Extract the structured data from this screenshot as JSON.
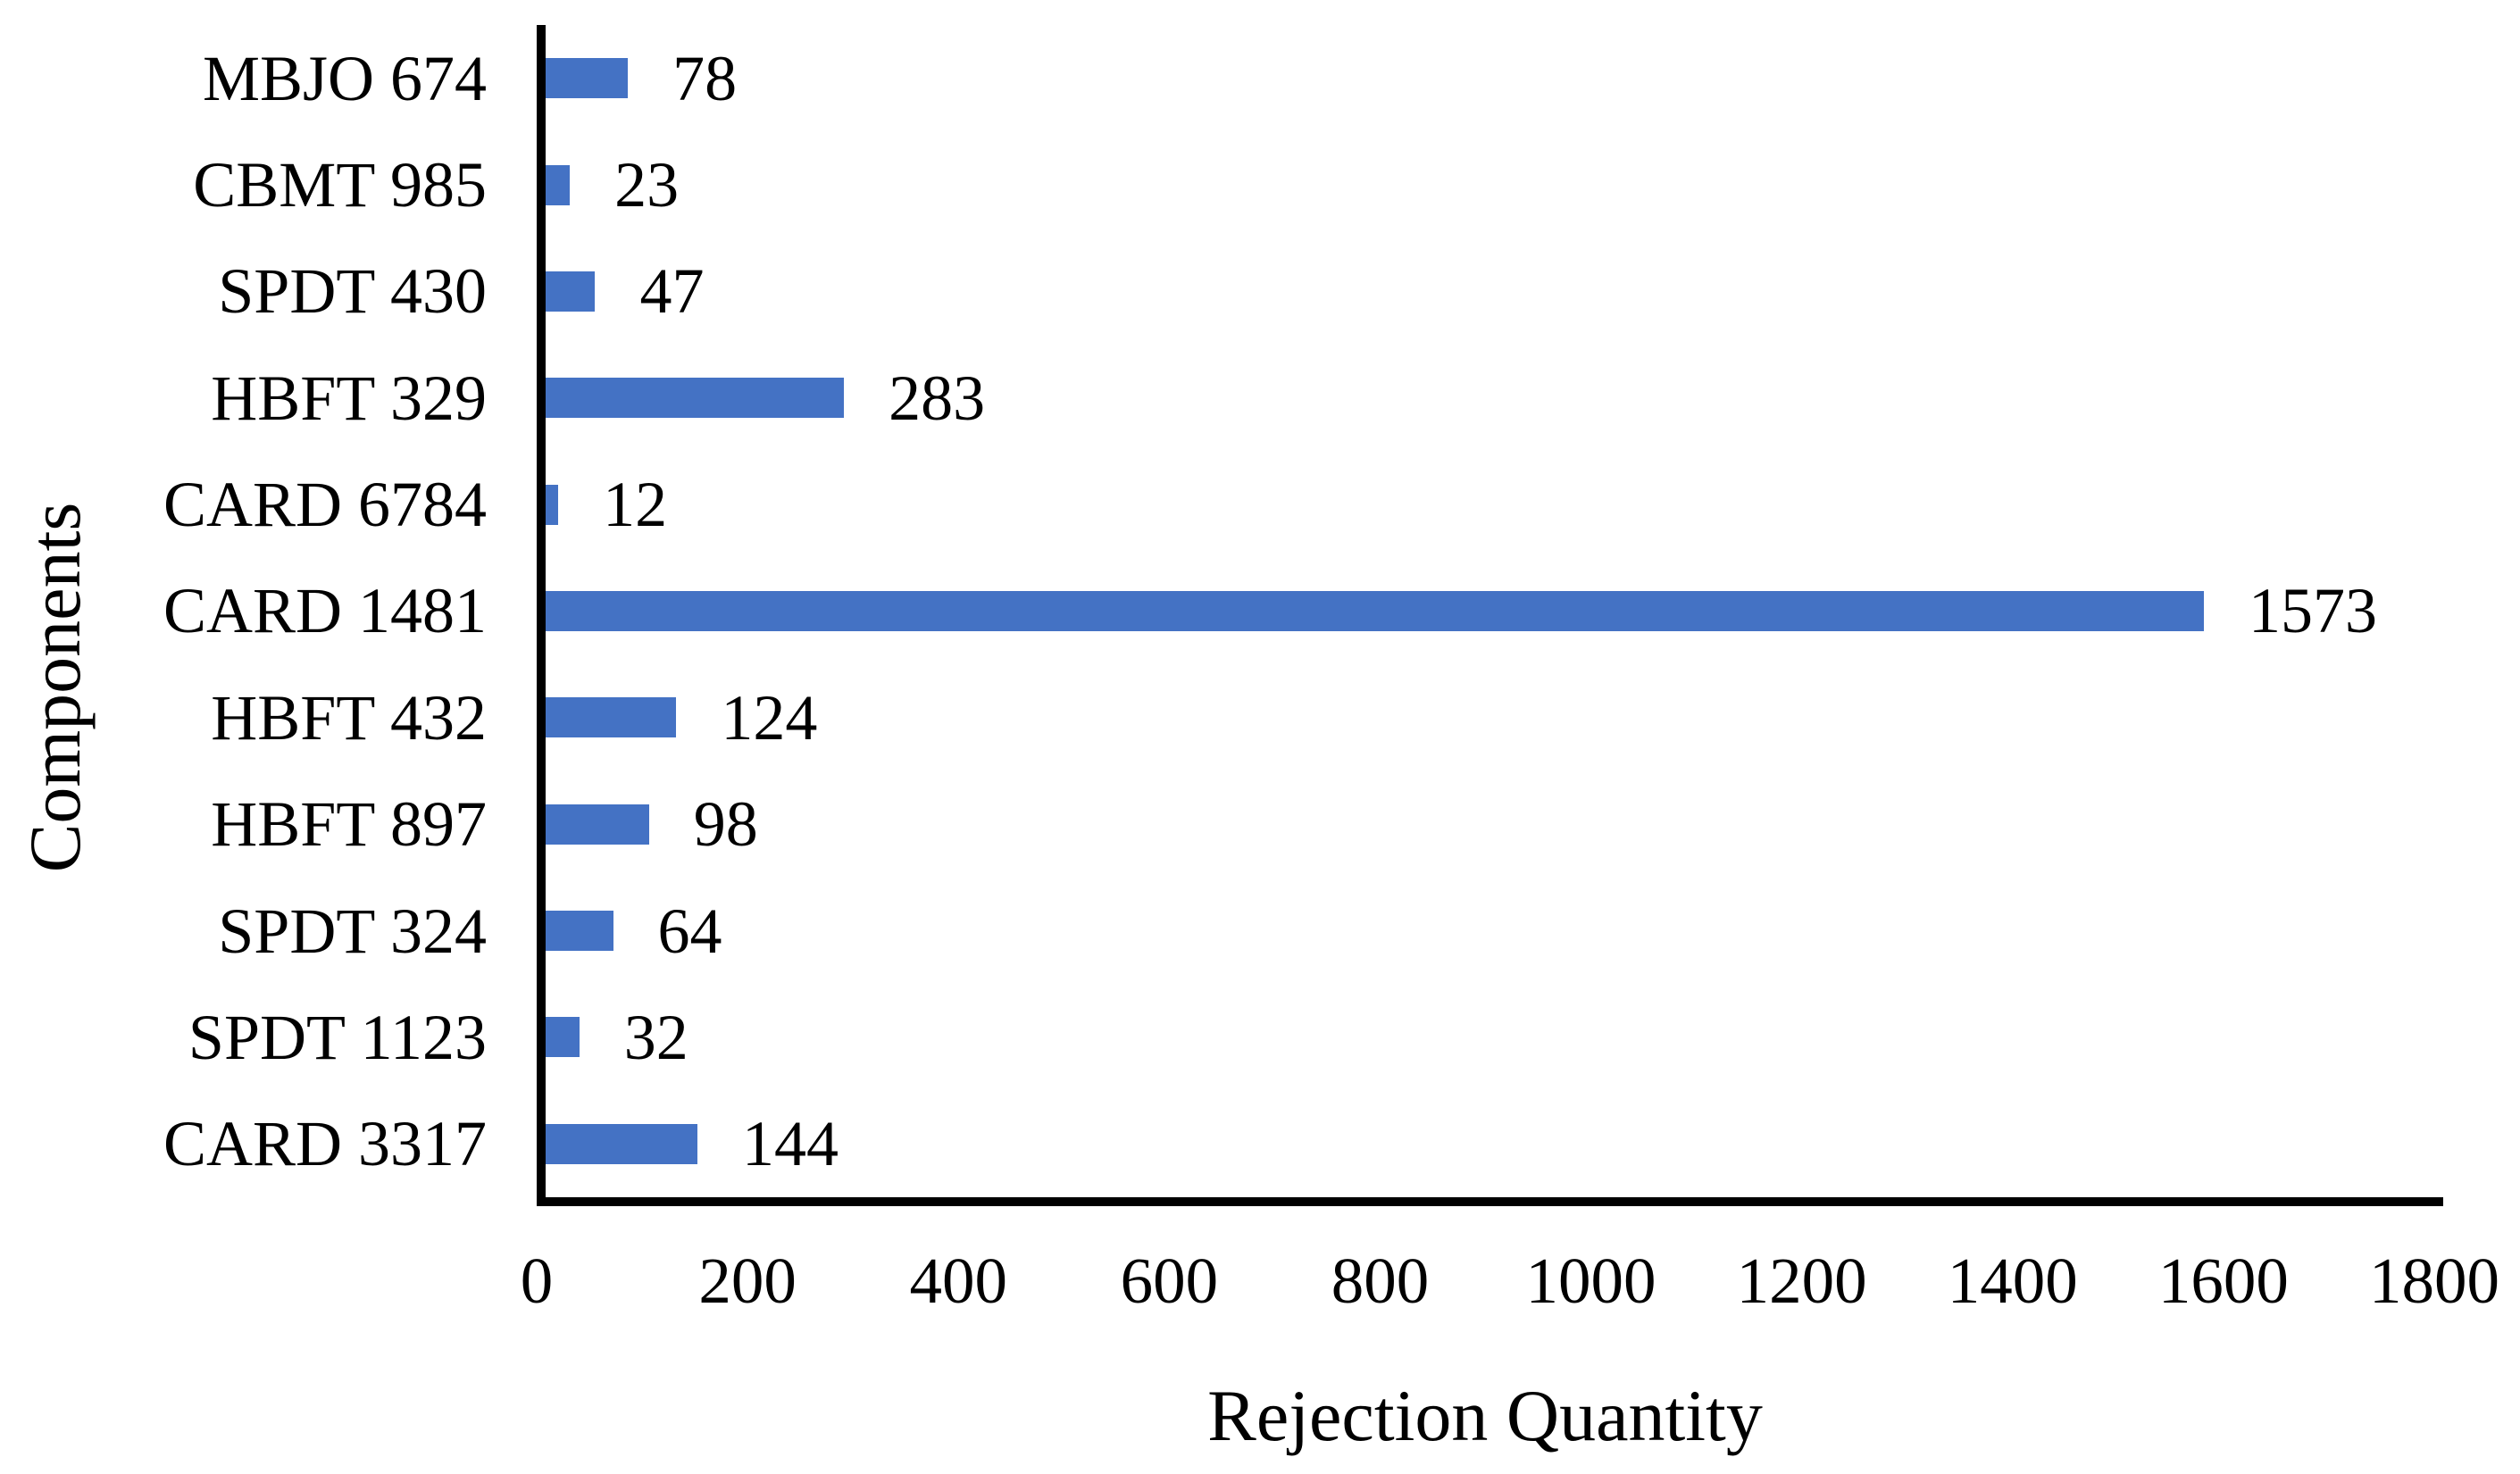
{
  "chart_data": {
    "type": "bar",
    "orientation": "horizontal",
    "title": "",
    "xlabel": "Rejection Quantity",
    "ylabel": "Components",
    "categories": [
      "MBJO 674",
      "CBMT 985",
      "SPDT 430",
      "HBFT 329",
      "CARD 6784",
      "CARD 1481",
      "HBFT 432",
      "HBFT 897",
      "SPDT 324",
      "SPDT 1123",
      "CARD 3317"
    ],
    "values": [
      78,
      23,
      47,
      283,
      12,
      1573,
      124,
      98,
      64,
      32,
      144
    ],
    "data_labels": [
      78,
      23,
      47,
      283,
      12,
      1573,
      124,
      98,
      64,
      32,
      144
    ],
    "xlim": [
      0,
      1800
    ],
    "xticks": [
      0,
      200,
      400,
      600,
      800,
      1000,
      1200,
      1400,
      1600,
      1800
    ],
    "grid": false,
    "legend": null,
    "bar_color": "#4472C4",
    "axis_color": "#000000",
    "text_color": "#000000",
    "background_color": "#ffffff"
  }
}
